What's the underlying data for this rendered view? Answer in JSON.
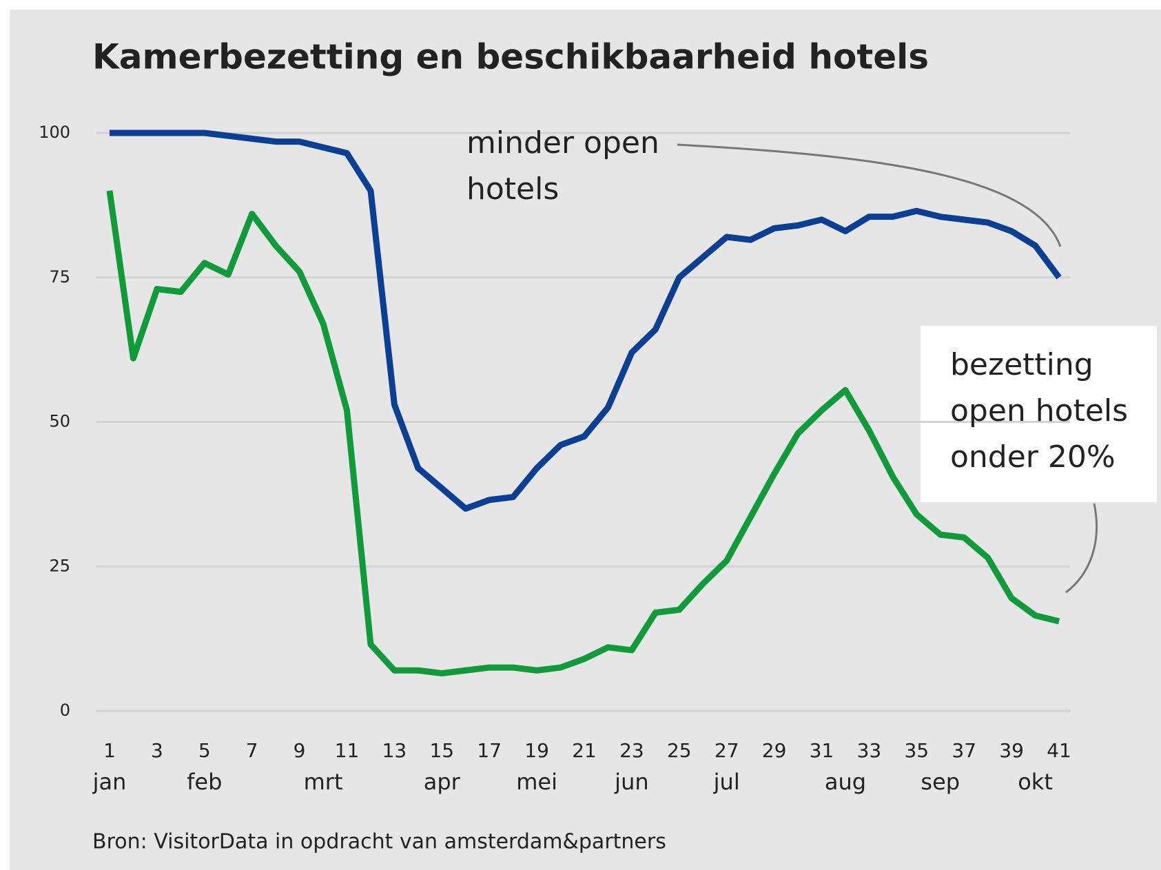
{
  "chart_data": {
    "type": "line",
    "title": "Kamerbezetting en beschikbaarheid hotels",
    "source": "Bron: VisitorData in opdracht van amsterdam&partners",
    "x": [
      1,
      2,
      3,
      4,
      5,
      6,
      7,
      8,
      9,
      10,
      11,
      12,
      13,
      14,
      15,
      16,
      17,
      18,
      19,
      20,
      21,
      22,
      23,
      24,
      25,
      26,
      27,
      28,
      29,
      30,
      31,
      32,
      33,
      34,
      35,
      36,
      37,
      38,
      39,
      40,
      41
    ],
    "series": [
      {
        "color": "#0b3f94",
        "values": [
          100,
          100,
          100,
          100,
          100,
          99.5,
          99,
          98.5,
          98.5,
          97.5,
          96.5,
          90,
          53,
          42,
          38.5,
          35,
          36.5,
          37,
          42,
          46,
          47.5,
          52.5,
          62,
          66,
          75,
          78.5,
          82,
          81.5,
          83.5,
          84,
          85,
          83,
          85.5,
          85.5,
          86.5,
          85.5,
          85,
          84.5,
          83,
          80.5,
          75
        ]
      },
      {
        "color": "#119a3a",
        "values": [
          90,
          61,
          73,
          72.5,
          77.5,
          75.5,
          86,
          80.5,
          76,
          67,
          52,
          11.5,
          7,
          7,
          6.5,
          7,
          7.5,
          7.5,
          7,
          7.5,
          9,
          11,
          10.5,
          17,
          17.5,
          22,
          26,
          33.5,
          41,
          48,
          52,
          55.5,
          48.5,
          40.5,
          34,
          30.5,
          30,
          26.5,
          19.5,
          16.5,
          15.5
        ]
      }
    ],
    "xlim": [
      1,
      41
    ],
    "xticks": [
      1,
      3,
      5,
      7,
      9,
      11,
      13,
      15,
      17,
      19,
      21,
      23,
      25,
      27,
      29,
      31,
      33,
      35,
      37,
      39,
      41
    ],
    "month_ticks": [
      {
        "value": 1,
        "label": "jan"
      },
      {
        "value": 5,
        "label": "feb"
      },
      {
        "value": 10,
        "label": "mrt"
      },
      {
        "value": 15,
        "label": "apr"
      },
      {
        "value": 19,
        "label": "mei"
      },
      {
        "value": 23,
        "label": "jun"
      },
      {
        "value": 27,
        "label": "jul"
      },
      {
        "value": 32,
        "label": "aug"
      },
      {
        "value": 36,
        "label": "sep"
      },
      {
        "value": 40,
        "label": "okt"
      }
    ],
    "ylim": [
      0,
      100
    ],
    "yticks": [
      0,
      25,
      50,
      75,
      100
    ],
    "grid": true,
    "annotations": [
      {
        "lines": [
          "minder open",
          "hotels"
        ]
      },
      {
        "lines": [
          "bezetting",
          "open hotels",
          "onder 20%"
        ]
      }
    ]
  }
}
